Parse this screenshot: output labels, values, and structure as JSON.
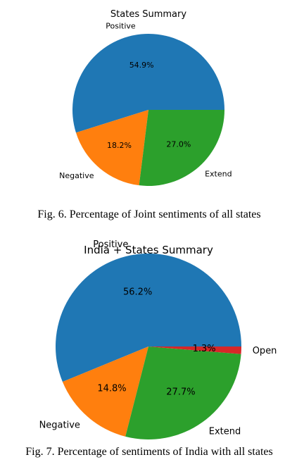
{
  "chart_data": [
    {
      "type": "pie",
      "title": "States Summary",
      "categories": [
        "Positive",
        "Negative",
        "Extend"
      ],
      "values": [
        54.9,
        18.2,
        27.0
      ],
      "value_labels": [
        "54.9%",
        "18.2%",
        "27.0%"
      ],
      "colors": [
        "#1f77b4",
        "#ff7f0e",
        "#2ca02c"
      ],
      "start_angle_deg": 0,
      "direction": "counterclockwise"
    },
    {
      "type": "pie",
      "title": "India + States Summary",
      "categories": [
        "Positive",
        "Negative",
        "Extend",
        "Open"
      ],
      "values": [
        56.2,
        14.8,
        27.7,
        1.3
      ],
      "value_labels": [
        "56.2%",
        "14.8%",
        "27.7%",
        "1.3%"
      ],
      "colors": [
        "#1f77b4",
        "#ff7f0e",
        "#2ca02c",
        "#d62728"
      ],
      "start_angle_deg": 0,
      "direction": "counterclockwise"
    }
  ],
  "captions": [
    "Fig. 6.  Percentage of Joint sentiments of all states",
    "Fig. 7.  Percentage of sentiments of India with all states"
  ]
}
